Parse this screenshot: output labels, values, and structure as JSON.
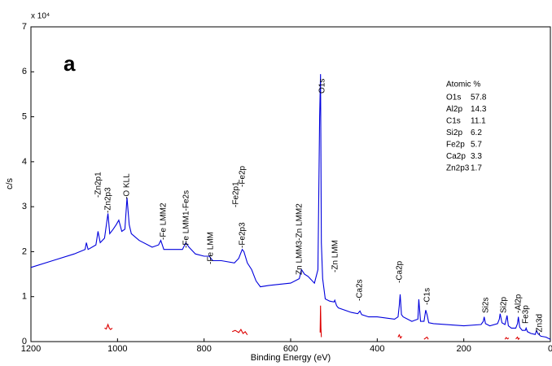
{
  "chart_data": {
    "type": "line",
    "panel_label": "a",
    "xlabel": "Binding Energy (eV)",
    "ylabel": "c/s",
    "y_multiplier": "x 10⁴",
    "xlim": [
      1200,
      0
    ],
    "xticks": [
      1200,
      1000,
      800,
      600,
      400,
      200,
      0
    ],
    "ylim": [
      0,
      7
    ],
    "yticks": [
      0,
      1,
      2,
      3,
      4,
      5,
      6,
      7
    ],
    "series": [
      {
        "color": "#0000dd",
        "x": [
          1200,
          1150,
          1100,
          1075,
          1072,
          1068,
          1050,
          1045,
          1040,
          1030,
          1022,
          1018,
          1010,
          1003,
          997,
          990,
          983,
          978,
          973,
          968,
          950,
          920,
          905,
          900,
          893,
          880,
          850,
          842,
          835,
          820,
          800,
          788,
          780,
          760,
          730,
          720,
          712,
          708,
          700,
          690,
          680,
          670,
          650,
          600,
          580,
          575,
          568,
          560,
          545,
          537,
          533,
          531,
          529,
          526,
          520,
          510,
          500,
          498,
          494,
          490,
          460,
          445,
          440,
          436,
          420,
          400,
          360,
          352,
          349,
          347,
          344,
          340,
          320,
          306,
          304,
          300,
          292,
          288,
          285,
          281,
          270,
          200,
          160,
          155,
          153,
          150,
          140,
          122,
          118,
          116,
          112,
          105,
          102,
          100,
          97,
          90,
          80,
          76,
          74,
          71,
          65,
          58,
          56,
          53,
          45,
          35,
          32,
          29,
          22,
          10,
          0
        ],
        "values": [
          1.65,
          1.8,
          1.95,
          2.05,
          2.2,
          2.05,
          2.15,
          2.45,
          2.2,
          2.3,
          2.85,
          2.4,
          2.5,
          2.6,
          2.7,
          2.45,
          2.5,
          3.2,
          2.6,
          2.4,
          2.25,
          2.1,
          2.15,
          2.25,
          2.05,
          2.05,
          2.05,
          2.2,
          2.1,
          1.95,
          1.9,
          1.9,
          1.8,
          1.8,
          1.75,
          1.85,
          2.05,
          2.0,
          1.75,
          1.6,
          1.35,
          1.22,
          1.25,
          1.3,
          1.4,
          1.6,
          1.5,
          1.45,
          1.3,
          1.6,
          5.0,
          5.95,
          2.2,
          1.4,
          0.95,
          0.9,
          0.88,
          0.92,
          0.8,
          0.75,
          0.65,
          0.62,
          0.68,
          0.6,
          0.55,
          0.55,
          0.5,
          0.55,
          0.8,
          1.05,
          0.6,
          0.55,
          0.45,
          0.5,
          0.94,
          0.45,
          0.45,
          0.7,
          0.6,
          0.42,
          0.4,
          0.35,
          0.38,
          0.45,
          0.55,
          0.4,
          0.35,
          0.4,
          0.5,
          0.62,
          0.42,
          0.38,
          0.5,
          0.58,
          0.35,
          0.3,
          0.3,
          0.4,
          0.55,
          0.32,
          0.25,
          0.25,
          0.3,
          0.22,
          0.18,
          0.16,
          0.25,
          0.18,
          0.12,
          0.1,
          0.05
        ]
      },
      {
        "color": "#dd0000",
        "x": [
          1030,
          1026,
          1022,
          1019,
          1016,
          1012,
          1000,
          735,
          728,
          720,
          715,
          710,
          705,
          700,
          600,
          532,
          531,
          530,
          529,
          500,
          352,
          349,
          346,
          343,
          300,
          292,
          288,
          285,
          282,
          200,
          105,
          102,
          99,
          96,
          90,
          80,
          76,
          74,
          71
        ],
        "values": [
          0.3,
          0.28,
          0.38,
          0.3,
          0.27,
          0.3,
          null,
          0.22,
          0.25,
          0.2,
          0.27,
          0.18,
          0.22,
          0.15,
          null,
          0.2,
          0.8,
          0.3,
          0.1,
          null,
          0.1,
          0.15,
          0.08,
          0.12,
          null,
          0.05,
          0.08,
          0.1,
          0.05,
          null,
          0.05,
          0.09,
          0.06,
          0.08,
          null,
          0.06,
          0.1,
          0.05,
          0.08
        ]
      }
    ],
    "annotations": [
      "-Zn2p1",
      "-Zn2p3",
      "-O KLL",
      "-Fe LMM2",
      "-Fe LMM1-Fe2s",
      "-Fe LMM",
      "-Fe2p1",
      "-Fe2p",
      "-Fe2p3",
      "Zn LMM3-Zn LMM2",
      "O1s",
      "-Zn LMM",
      "-Ca2s",
      "-Ca2p",
      "-C1s",
      "Si2s",
      "Si2p",
      "-Al2p",
      "Fe3p",
      "-Zn3d"
    ],
    "atomic_table": {
      "title": "Atomic %",
      "rows": [
        [
          "O1s",
          57.8
        ],
        [
          "Al2p",
          14.3
        ],
        [
          "C1s",
          11.1
        ],
        [
          "Si2p",
          6.2
        ],
        [
          "Fe2p",
          5.7
        ],
        [
          "Ca2p",
          3.3
        ],
        [
          "Zn2p3",
          1.7
        ]
      ]
    }
  }
}
